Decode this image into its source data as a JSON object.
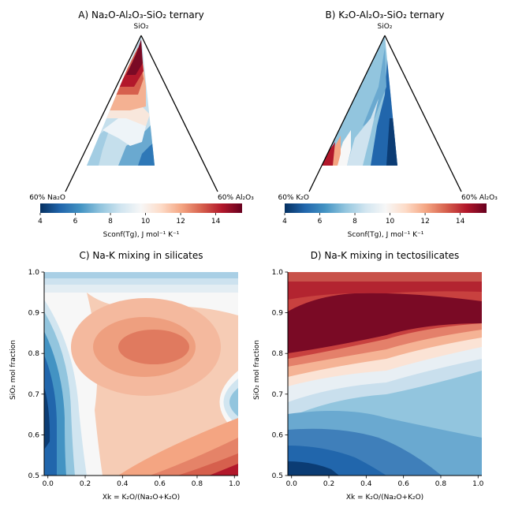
{
  "chart_data": [
    {
      "id": "A",
      "type": "ternary-contour",
      "title": "A) Na₂O-Al₂O₃-SiO₂ ternary",
      "vertex_labels": {
        "top": "SiO₂",
        "left": "60% Na₂O",
        "right": "60% Al₂O₃"
      },
      "colorbar": {
        "label": "Sconf(Tg), J mol⁻¹ K⁻¹",
        "range": [
          4,
          15.5
        ],
        "ticks": [
          4,
          6,
          8,
          10,
          12,
          14
        ]
      },
      "value_range_shown": [
        5,
        15.5
      ],
      "high_region": "near SiO₂ apex, Na-rich side",
      "low_region": "peraluminous side near Al₂O₃ join"
    },
    {
      "id": "B",
      "type": "ternary-contour",
      "title": "B) K₂O-Al₂O₃-SiO₂ ternary",
      "vertex_labels": {
        "top": "SiO₂",
        "left": "60% K₂O",
        "right": "60% Al₂O₃"
      },
      "colorbar": {
        "label": "Sconf(Tg), J mol⁻¹ K⁻¹",
        "range": [
          4,
          15.5
        ],
        "ticks": [
          4,
          6,
          8,
          10,
          12,
          14
        ]
      },
      "value_range_shown": [
        4,
        15
      ],
      "high_region": "K-rich, low-SiO₂ corner",
      "low_region": "peraluminous side near Al₂O₃ join"
    },
    {
      "id": "C",
      "type": "contour",
      "title": "C) Na-K mixing in silicates",
      "xlabel": "Xk = K₂O/(Na₂O+K₂O)",
      "ylabel": "SiO₂ mol fraction",
      "xlim": [
        -0.02,
        1.02
      ],
      "ylim": [
        0.5,
        1.0
      ],
      "xticks": [
        "0.0",
        "0.2",
        "0.4",
        "0.6",
        "0.8",
        "1.0"
      ],
      "yticks": [
        "0.5",
        "0.6",
        "0.7",
        "0.8",
        "0.9",
        "1.0"
      ],
      "maximum": {
        "x": 0.55,
        "y": 0.81
      },
      "minimum": {
        "x": 0.0,
        "y": 0.65
      }
    },
    {
      "id": "D",
      "type": "contour",
      "title": "D) Na-K mixing in tectosilicates",
      "xlabel": "Xk = K₂O/(Na₂O+K₂O)",
      "ylabel": "SiO₂ mol fraction",
      "xlim": [
        -0.02,
        1.02
      ],
      "ylim": [
        0.5,
        1.0
      ],
      "xticks": [
        "0.0",
        "0.2",
        "0.4",
        "0.6",
        "0.8",
        "1.0"
      ],
      "yticks": [
        "0.5",
        "0.6",
        "0.7",
        "0.8",
        "0.9",
        "1.0"
      ],
      "maximum": {
        "x": 0.35,
        "y": 0.83
      },
      "minimum": {
        "x": 0.1,
        "y": 0.5
      }
    }
  ],
  "colors": {
    "colormap": [
      "#053061",
      "#2166ac",
      "#4393c3",
      "#92c5de",
      "#d1e5f0",
      "#f7f7f7",
      "#fddbc7",
      "#f4a582",
      "#d6604d",
      "#b2182b",
      "#67001f"
    ]
  }
}
